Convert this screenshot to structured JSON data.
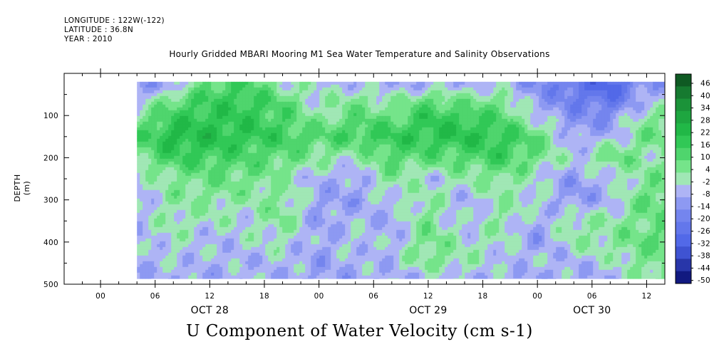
{
  "header": {
    "longitude": "LONGITUDE : 122W(-122)",
    "latitude": "LATITUDE : 36.8N",
    "year": "YEAR : 2010"
  },
  "chart_data": {
    "type": "heatmap",
    "title": "Hourly Gridded MBARI Mooring M1 Sea Water Temperature and Salinity Observations",
    "bottom_title": "U Component of Water Velocity (cm s-1)",
    "ylabel": "DEPTH (m)",
    "y_axis": {
      "range": [
        500,
        0
      ],
      "ticks": [
        100,
        200,
        300,
        400,
        500
      ],
      "inverted": true,
      "data_range": [
        20,
        487
      ]
    },
    "x_axis": {
      "range_hours_from_oct28_00": [
        -4,
        62
      ],
      "data_start_hour": 4,
      "hour_ticks": [
        "00",
        "06",
        "12",
        "18",
        "00",
        "06",
        "12",
        "18",
        "00",
        "06",
        "12"
      ],
      "hour_tick_positions": [
        0,
        6,
        12,
        18,
        24,
        30,
        36,
        42,
        48,
        54,
        60
      ],
      "day_labels": [
        {
          "label": "OCT 28",
          "hour": 12
        },
        {
          "label": "OCT 29",
          "hour": 36
        },
        {
          "label": "OCT 30",
          "hour": 54
        }
      ]
    },
    "colorbar": {
      "levels": [
        "46",
        "40",
        "34",
        "28",
        "22",
        "16",
        "10",
        "4",
        "-2",
        "-8",
        "-14",
        "-20",
        "-26",
        "-32",
        "-38",
        "-44",
        "-50"
      ],
      "min": -50,
      "max": 52,
      "colors": {
        "dark_green": "#0b4a1c",
        "green": "#22c14a",
        "light_green": "#9cf0a8",
        "light_blue": "#b4b8f6",
        "blue": "#4a62e6",
        "navy": "#060a6c"
      }
    },
    "field_description_rows_depth_m": [
      30,
      60,
      100,
      150,
      200,
      250,
      300,
      350,
      400,
      450,
      480
    ],
    "field_cols_hours": [
      4,
      8,
      12,
      16,
      20,
      24,
      28,
      32,
      36,
      40,
      44,
      48,
      52,
      56,
      60
    ],
    "values": [
      [
        -10,
        -8,
        12,
        14,
        2,
        -2,
        -4,
        -6,
        -6,
        -4,
        -4,
        -14,
        -22,
        -30,
        -10
      ],
      [
        -6,
        8,
        16,
        18,
        10,
        -2,
        6,
        0,
        10,
        4,
        6,
        -10,
        -18,
        -24,
        -6
      ],
      [
        4,
        16,
        20,
        18,
        14,
        2,
        10,
        8,
        18,
        16,
        12,
        -4,
        -14,
        -14,
        4
      ],
      [
        12,
        24,
        22,
        20,
        16,
        12,
        16,
        18,
        20,
        22,
        18,
        10,
        -8,
        -6,
        8
      ],
      [
        6,
        16,
        16,
        12,
        10,
        4,
        0,
        12,
        10,
        12,
        16,
        8,
        -4,
        10,
        2
      ],
      [
        -4,
        4,
        8,
        8,
        2,
        -6,
        -8,
        6,
        -4,
        2,
        6,
        -2,
        -10,
        -4,
        6
      ],
      [
        -6,
        4,
        4,
        2,
        6,
        -8,
        -10,
        -2,
        4,
        -6,
        2,
        0,
        -12,
        -6,
        10
      ],
      [
        -4,
        2,
        0,
        -2,
        6,
        -10,
        -4,
        -8,
        6,
        -6,
        4,
        -8,
        4,
        2,
        8
      ],
      [
        -6,
        0,
        -6,
        -2,
        0,
        -8,
        -2,
        -6,
        8,
        0,
        0,
        -10,
        2,
        4,
        10
      ],
      [
        -8,
        -4,
        -4,
        -6,
        -4,
        -10,
        -6,
        -4,
        6,
        2,
        -4,
        -4,
        -6,
        -2,
        6
      ],
      [
        -6,
        -6,
        -8,
        -4,
        -6,
        -8,
        -8,
        -6,
        -4,
        -4,
        -6,
        -8,
        -6,
        -6,
        4
      ]
    ]
  }
}
